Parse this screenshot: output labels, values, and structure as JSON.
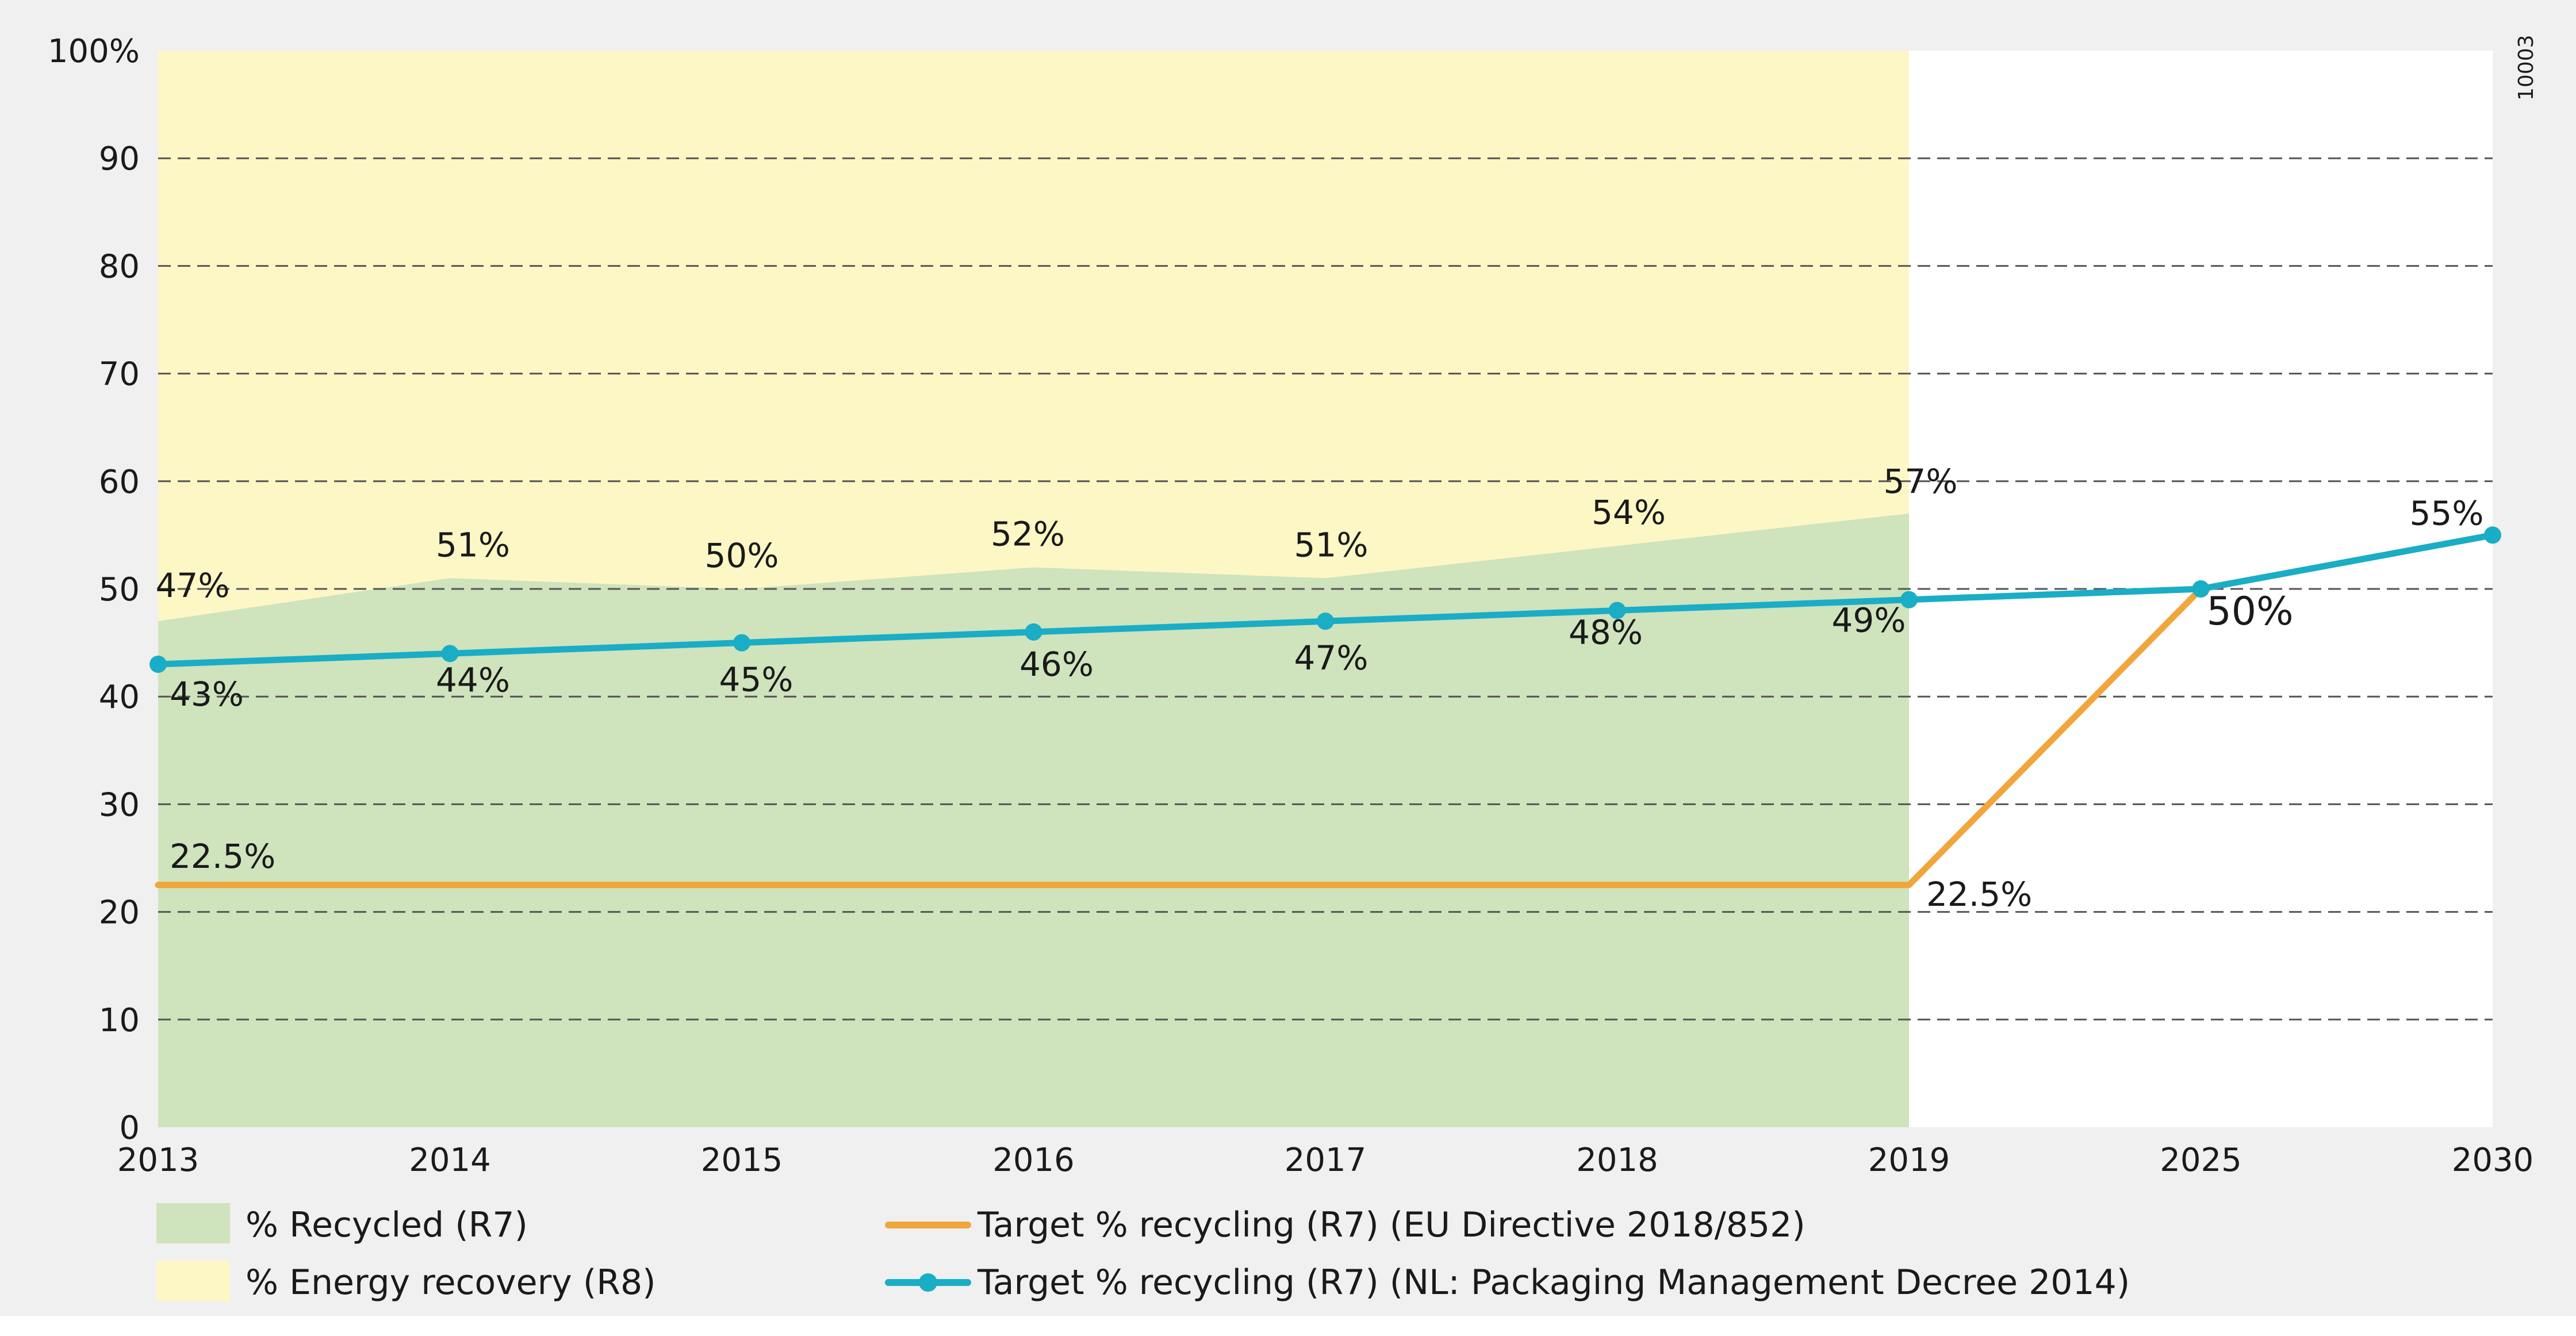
{
  "chart_data": {
    "type": "area",
    "code": "10003",
    "categories": [
      "2013",
      "2014",
      "2015",
      "2016",
      "2017",
      "2018",
      "2019",
      "2025",
      "2030"
    ],
    "y_axis": {
      "ylim": [
        0,
        100
      ],
      "ticks": [
        0,
        10,
        20,
        30,
        40,
        50,
        60,
        70,
        80,
        90,
        100
      ],
      "tick_labels": [
        "0",
        "10",
        "20",
        "30",
        "40",
        "50",
        "60",
        "70",
        "80",
        "90",
        "100%"
      ],
      "grid": "dashed"
    },
    "series": [
      {
        "name": "% Recycled (R7)",
        "kind": "area",
        "color": "#cfe3bd",
        "x": [
          "2013",
          "2014",
          "2015",
          "2016",
          "2017",
          "2018",
          "2019"
        ],
        "values": [
          47,
          51,
          50,
          52,
          51,
          54,
          57
        ],
        "labels": [
          "47%",
          "51%",
          "50%",
          "52%",
          "51%",
          "54%",
          "57%"
        ]
      },
      {
        "name": "% Energy recovery (R8)",
        "kind": "area-stacked-to-100",
        "color": "#fdf7c5",
        "x": [
          "2013",
          "2014",
          "2015",
          "2016",
          "2017",
          "2018",
          "2019"
        ],
        "values": [
          53,
          49,
          50,
          48,
          49,
          46,
          43
        ]
      },
      {
        "name": "Target % recycling (R7) (EU Directive 2018/852)",
        "kind": "line",
        "color": "#f0a63c",
        "x": [
          "2013",
          "2019",
          "2025",
          "2030"
        ],
        "values": [
          22.5,
          22.5,
          50,
          55
        ],
        "labels": [
          "22.5%",
          "22.5%",
          "50%",
          ""
        ]
      },
      {
        "name": "Target % recycling (R7) (NL: Packaging Management Decree 2014)",
        "kind": "line-markers",
        "color": "#1aadc6",
        "x": [
          "2013",
          "2014",
          "2015",
          "2016",
          "2017",
          "2018",
          "2019",
          "2025",
          "2030"
        ],
        "values": [
          43,
          44,
          45,
          46,
          47,
          48,
          49,
          50,
          55
        ],
        "labels": [
          "43%",
          "44%",
          "45%",
          "46%",
          "47%",
          "48%",
          "49%",
          "",
          "55%"
        ]
      }
    ],
    "legend": [
      {
        "label": "% Recycled (R7)",
        "kind": "swatch",
        "color": "#cfe3bd"
      },
      {
        "label": "% Energy recovery (R8)",
        "kind": "swatch",
        "color": "#fdf7c5"
      },
      {
        "label": "Target % recycling (R7) (EU Directive 2018/852)",
        "kind": "line",
        "color": "#f0a63c"
      },
      {
        "label": "Target % recycling (R7) (NL: Packaging Management Decree 2014)",
        "kind": "line-marker",
        "color": "#1aadc6"
      }
    ],
    "legend_position": "bottom"
  },
  "colors": {
    "background": "#f0f0f0",
    "plot_background": "#ffffff",
    "grid": "#555555",
    "axis": "#333333"
  }
}
